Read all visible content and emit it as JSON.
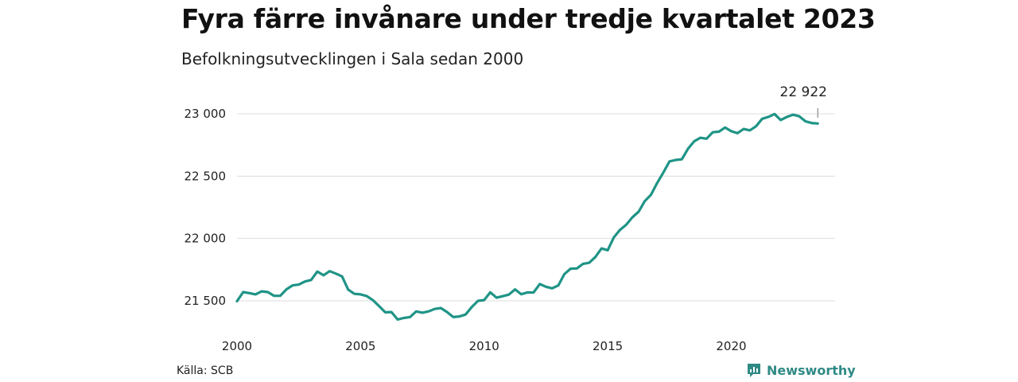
{
  "header": {
    "title": "Fyra färre invånare under tredje kvartalet 2023",
    "subtitle": "Befolkningsutvecklingen i Sala sedan 2000"
  },
  "footer": {
    "source": "Källa: SCB",
    "brand": "Newsworthy",
    "brand_icon": "newsworthy-logo-icon"
  },
  "colors": {
    "line": "#1f9486",
    "grid": "#dddddd",
    "brand": "#2f8a86"
  },
  "chart_data": {
    "type": "line",
    "title": "Fyra färre invånare under tredje kvartalet 2023",
    "subtitle": "Befolkningsutvecklingen i Sala sedan 2000",
    "xlabel": "",
    "ylabel": "",
    "x_ticks": [
      2000,
      2005,
      2010,
      2015,
      2020
    ],
    "y_ticks": [
      21500,
      22000,
      22500,
      23000
    ],
    "y_tick_labels": [
      "21 500",
      "22 000",
      "22 500",
      "23 000"
    ],
    "xlim": [
      2000,
      2024.2
    ],
    "ylim": [
      21330,
      23100
    ],
    "grid": true,
    "legend": "none",
    "end_label": "22 922",
    "series": [
      {
        "name": "",
        "x": [
          2000.0,
          2000.25,
          2000.5,
          2000.75,
          2001.0,
          2001.25,
          2001.5,
          2001.75,
          2002.0,
          2002.25,
          2002.5,
          2002.75,
          2003.0,
          2003.25,
          2003.5,
          2003.75,
          2004.0,
          2004.25,
          2004.5,
          2004.75,
          2005.0,
          2005.25,
          2005.5,
          2005.75,
          2006.0,
          2006.25,
          2006.5,
          2006.75,
          2007.0,
          2007.25,
          2007.5,
          2007.75,
          2008.0,
          2008.25,
          2008.5,
          2008.75,
          2009.0,
          2009.25,
          2009.5,
          2009.75,
          2010.0,
          2010.25,
          2010.5,
          2010.75,
          2011.0,
          2011.25,
          2011.5,
          2011.75,
          2012.0,
          2012.25,
          2012.5,
          2012.75,
          2013.0,
          2013.25,
          2013.5,
          2013.75,
          2014.0,
          2014.25,
          2014.5,
          2014.75,
          2015.0,
          2015.25,
          2015.5,
          2015.75,
          2016.0,
          2016.25,
          2016.5,
          2016.75,
          2017.0,
          2017.25,
          2017.5,
          2017.75,
          2018.0,
          2018.25,
          2018.5,
          2018.75,
          2019.0,
          2019.25,
          2019.5,
          2019.75,
          2020.0,
          2020.25,
          2020.5,
          2020.75,
          2021.0,
          2021.25,
          2021.5,
          2021.75,
          2022.0,
          2022.25,
          2022.5,
          2022.75,
          2023.0,
          2023.25,
          2023.5
        ],
        "values": [
          21497,
          21570,
          21562,
          21552,
          21576,
          21570,
          21540,
          21540,
          21592,
          21624,
          21630,
          21655,
          21667,
          21735,
          21705,
          21738,
          21718,
          21696,
          21590,
          21556,
          21552,
          21538,
          21505,
          21457,
          21408,
          21410,
          21350,
          21363,
          21370,
          21415,
          21405,
          21415,
          21435,
          21442,
          21410,
          21370,
          21375,
          21390,
          21450,
          21500,
          21506,
          21568,
          21525,
          21537,
          21550,
          21592,
          21553,
          21567,
          21567,
          21635,
          21613,
          21600,
          21623,
          21715,
          21758,
          21760,
          21796,
          21805,
          21852,
          21920,
          21906,
          22010,
          22070,
          22110,
          22170,
          22215,
          22300,
          22350,
          22445,
          22528,
          22618,
          22630,
          22635,
          22720,
          22780,
          22808,
          22800,
          22852,
          22857,
          22890,
          22860,
          22845,
          22878,
          22867,
          22900,
          22960,
          22975,
          22998,
          22950,
          22975,
          22993,
          22980,
          22940,
          22926,
          22922
        ]
      }
    ]
  }
}
